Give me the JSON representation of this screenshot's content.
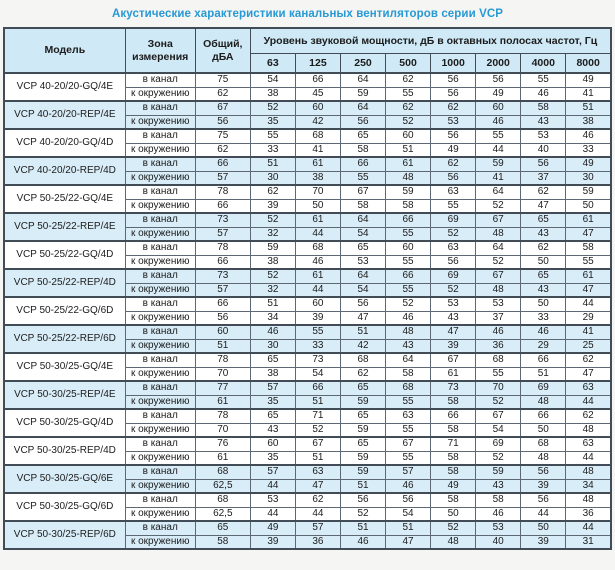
{
  "title": "Акустические характеристики канальных вентиляторов  серии VCP",
  "colors": {
    "title_accent": "#2799d4",
    "header_bg": "#cfe9f7",
    "shaded_row_bg": "#d9edf8",
    "grid_border": "#414c57"
  },
  "table": {
    "headers": {
      "model": "Модель",
      "zone": "Зона измерения",
      "total": "Общий, дБА",
      "spl_span": "Уровень звуковой мощности, дБ в октавных полосах частот, Гц",
      "freqs": [
        "63",
        "125",
        "250",
        "500",
        "1000",
        "2000",
        "4000",
        "8000"
      ]
    },
    "groups": [
      {
        "model": "VCP 40-20/20-GQ/4E",
        "shaded": false,
        "rows": [
          {
            "zone": "в канал",
            "total": "75",
            "values": [
              54,
              66,
              64,
              62,
              56,
              56,
              55,
              49
            ]
          },
          {
            "zone": "к окружению",
            "total": "62",
            "values": [
              38,
              45,
              59,
              55,
              56,
              49,
              46,
              41
            ]
          }
        ]
      },
      {
        "model": "VCP 40-20/20-REP/4E",
        "shaded": true,
        "rows": [
          {
            "zone": "в канал",
            "total": "67",
            "values": [
              52,
              60,
              64,
              62,
              62,
              60,
              58,
              51
            ]
          },
          {
            "zone": "к окружению",
            "total": "56",
            "values": [
              35,
              42,
              56,
              52,
              53,
              46,
              43,
              38
            ]
          }
        ]
      },
      {
        "model": "VCP 40-20/20-GQ/4D",
        "shaded": false,
        "rows": [
          {
            "zone": "в канал",
            "total": "75",
            "values": [
              55,
              68,
              65,
              60,
              56,
              55,
              53,
              46
            ]
          },
          {
            "zone": "к окружению",
            "total": "62",
            "values": [
              33,
              41,
              58,
              51,
              49,
              44,
              40,
              33
            ]
          }
        ]
      },
      {
        "model": "VCP 40-20/20-REP/4D",
        "shaded": true,
        "rows": [
          {
            "zone": "в канал",
            "total": "66",
            "values": [
              51,
              61,
              66,
              61,
              62,
              59,
              56,
              49
            ]
          },
          {
            "zone": "к окружению",
            "total": "57",
            "values": [
              30,
              38,
              55,
              48,
              56,
              41,
              37,
              30
            ]
          }
        ]
      },
      {
        "model": "VCP 50-25/22-GQ/4E",
        "shaded": false,
        "rows": [
          {
            "zone": "в канал",
            "total": "78",
            "values": [
              62,
              70,
              67,
              59,
              63,
              64,
              62,
              59
            ]
          },
          {
            "zone": "к окружению",
            "total": "66",
            "values": [
              39,
              50,
              58,
              58,
              55,
              52,
              47,
              50
            ]
          }
        ]
      },
      {
        "model": "VCP 50-25/22-REP/4E",
        "shaded": true,
        "rows": [
          {
            "zone": "в канал",
            "total": "73",
            "values": [
              52,
              61,
              64,
              66,
              69,
              67,
              65,
              61
            ]
          },
          {
            "zone": "к окружению",
            "total": "57",
            "values": [
              32,
              44,
              54,
              55,
              52,
              48,
              43,
              47
            ]
          }
        ]
      },
      {
        "model": "VCP 50-25/22-GQ/4D",
        "shaded": false,
        "rows": [
          {
            "zone": "в канал",
            "total": "78",
            "values": [
              59,
              68,
              65,
              60,
              63,
              64,
              62,
              58
            ]
          },
          {
            "zone": "к окружению",
            "total": "66",
            "values": [
              38,
              46,
              53,
              55,
              56,
              52,
              50,
              55
            ]
          }
        ]
      },
      {
        "model": "VCP 50-25/22-REP/4D",
        "shaded": true,
        "rows": [
          {
            "zone": "в канал",
            "total": "73",
            "values": [
              52,
              61,
              64,
              66,
              69,
              67,
              65,
              61
            ]
          },
          {
            "zone": "к окружению",
            "total": "57",
            "values": [
              32,
              44,
              54,
              55,
              52,
              48,
              43,
              47
            ]
          }
        ]
      },
      {
        "model": "VCP 50-25/22-GQ/6D",
        "shaded": false,
        "rows": [
          {
            "zone": "в канал",
            "total": "66",
            "values": [
              51,
              60,
              56,
              52,
              53,
              53,
              50,
              44
            ]
          },
          {
            "zone": "к окружению",
            "total": "56",
            "values": [
              34,
              39,
              47,
              46,
              43,
              37,
              33,
              29
            ]
          }
        ]
      },
      {
        "model": "VCP 50-25/22-REP/6D",
        "shaded": true,
        "rows": [
          {
            "zone": "в канал",
            "total": "60",
            "values": [
              46,
              55,
              51,
              48,
              47,
              46,
              46,
              41
            ]
          },
          {
            "zone": "к окружению",
            "total": "51",
            "values": [
              30,
              33,
              42,
              43,
              39,
              36,
              29,
              25
            ]
          }
        ]
      },
      {
        "model": "VCP 50-30/25-GQ/4E",
        "shaded": false,
        "rows": [
          {
            "zone": "в канал",
            "total": "78",
            "values": [
              65,
              73,
              68,
              64,
              67,
              68,
              66,
              62
            ]
          },
          {
            "zone": "к окружению",
            "total": "70",
            "values": [
              38,
              54,
              62,
              58,
              61,
              55,
              51,
              47
            ]
          }
        ]
      },
      {
        "model": "VCP 50-30/25-REP/4E",
        "shaded": true,
        "rows": [
          {
            "zone": "в канал",
            "total": "77",
            "values": [
              57,
              66,
              65,
              68,
              73,
              70,
              69,
              63
            ]
          },
          {
            "zone": "к окружению",
            "total": "61",
            "values": [
              35,
              51,
              59,
              55,
              58,
              52,
              48,
              44
            ]
          }
        ]
      },
      {
        "model": "VCP 50-30/25-GQ/4D",
        "shaded": false,
        "rows": [
          {
            "zone": "в канал",
            "total": "78",
            "values": [
              65,
              71,
              65,
              63,
              66,
              67,
              66,
              62
            ]
          },
          {
            "zone": "к окружению",
            "total": "70",
            "values": [
              43,
              52,
              59,
              55,
              58,
              54,
              50,
              48
            ]
          }
        ]
      },
      {
        "model": "VCP 50-30/25-REP/4D",
        "shaded": false,
        "rows": [
          {
            "zone": "в канал",
            "total": "76",
            "values": [
              60,
              67,
              65,
              67,
              71,
              69,
              68,
              63
            ]
          },
          {
            "zone": "к окружению",
            "total": "61",
            "values": [
              35,
              51,
              59,
              55,
              58,
              52,
              48,
              44
            ]
          }
        ]
      },
      {
        "model": "VCP 50-30/25-GQ/6E",
        "shaded": true,
        "rows": [
          {
            "zone": "в канал",
            "total": "68",
            "values": [
              57,
              63,
              59,
              57,
              58,
              59,
              56,
              48
            ]
          },
          {
            "zone": "к окружению",
            "total": "62,5",
            "values": [
              44,
              47,
              51,
              46,
              49,
              43,
              39,
              34
            ]
          }
        ]
      },
      {
        "model": "VCP 50-30/25-GQ/6D",
        "shaded": false,
        "rows": [
          {
            "zone": "в канал",
            "total": "68",
            "values": [
              53,
              62,
              56,
              56,
              58,
              58,
              56,
              48
            ]
          },
          {
            "zone": "к окружению",
            "total": "62,5",
            "values": [
              44,
              44,
              52,
              54,
              50,
              46,
              44,
              36
            ]
          }
        ]
      },
      {
        "model": "VCP 50-30/25-REP/6D",
        "shaded": true,
        "rows": [
          {
            "zone": "в канал",
            "total": "65",
            "values": [
              49,
              57,
              51,
              51,
              52,
              53,
              50,
              44
            ]
          },
          {
            "zone": "к окружению",
            "total": "58",
            "values": [
              39,
              36,
              46,
              47,
              48,
              40,
              39,
              31
            ]
          }
        ]
      }
    ]
  }
}
